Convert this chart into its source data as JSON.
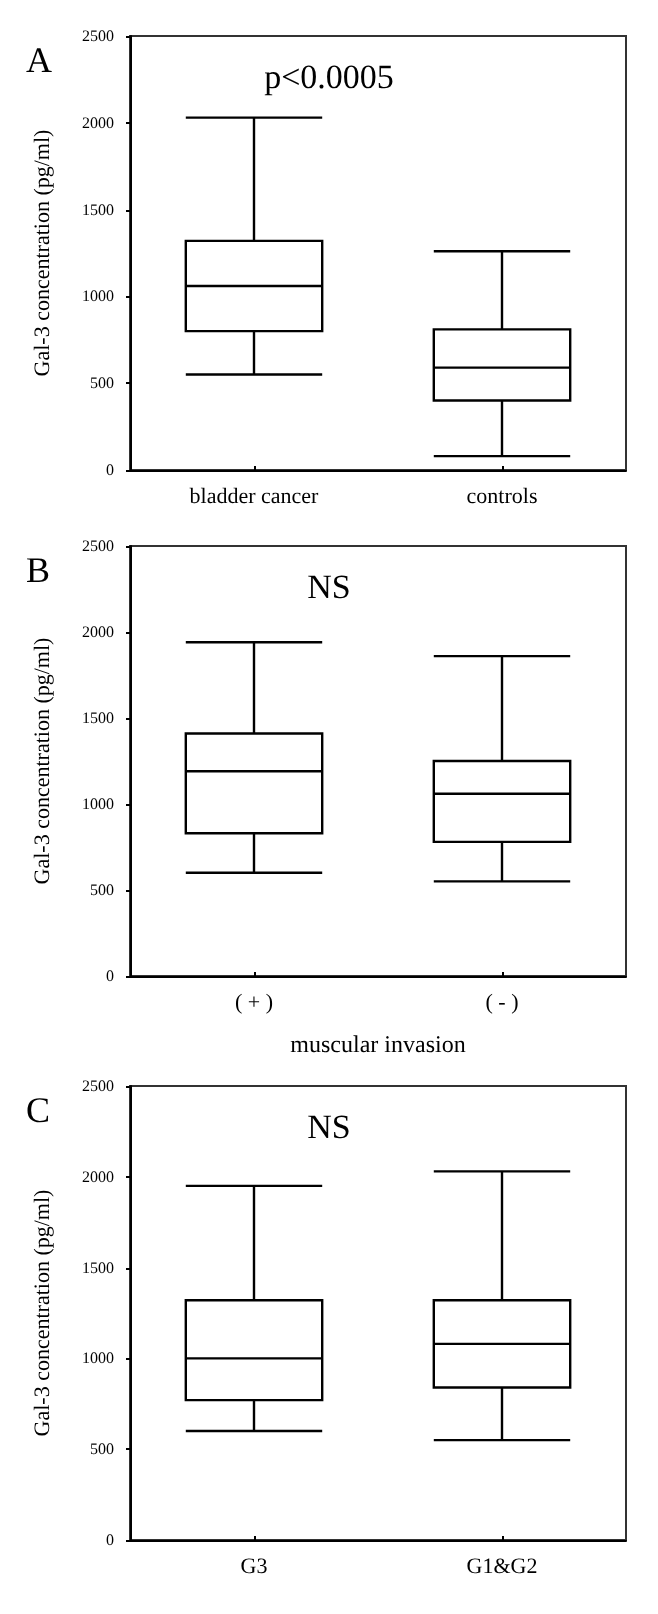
{
  "chart_data": [
    {
      "type": "box",
      "title": "A",
      "ylabel": "Gal-3 concentration (pg/ml)",
      "annotations": [
        "p<0.0005"
      ],
      "categories": [
        "bladder cancer",
        "controls"
      ],
      "boxes": [
        {
          "low": 550,
          "q1": 800,
          "median": 1060,
          "q3": 1320,
          "high": 2030
        },
        {
          "low": 80,
          "q1": 400,
          "median": 590,
          "q3": 810,
          "high": 1260
        }
      ],
      "ylim": [
        0,
        2500
      ],
      "yticks": [
        0,
        500,
        1000,
        1500,
        2000,
        2500
      ]
    },
    {
      "type": "box",
      "title": "B",
      "ylabel": "Gal-3 concentration (pg/ml)",
      "xlabel": "muscular invasion",
      "annotations": [
        "NS"
      ],
      "categories": [
        "( + )",
        "( - )"
      ],
      "boxes": [
        {
          "low": 600,
          "q1": 830,
          "median": 1190,
          "q3": 1410,
          "high": 1940
        },
        {
          "low": 550,
          "q1": 780,
          "median": 1060,
          "q3": 1250,
          "high": 1860
        }
      ],
      "ylim": [
        0,
        2500
      ],
      "yticks": [
        0,
        500,
        1000,
        1500,
        2000,
        2500
      ]
    },
    {
      "type": "box",
      "title": "C",
      "ylabel": "Gal-3 concentration (pg/ml)",
      "annotations": [
        "NS"
      ],
      "categories": [
        "G3",
        "G1&G2"
      ],
      "boxes": [
        {
          "low": 600,
          "q1": 770,
          "median": 1000,
          "q3": 1320,
          "high": 1950
        },
        {
          "low": 550,
          "q1": 840,
          "median": 1080,
          "q3": 1320,
          "high": 2030
        }
      ],
      "ylim": [
        0,
        2500
      ],
      "yticks": [
        0,
        500,
        1000,
        1500,
        2000,
        2500
      ]
    }
  ]
}
